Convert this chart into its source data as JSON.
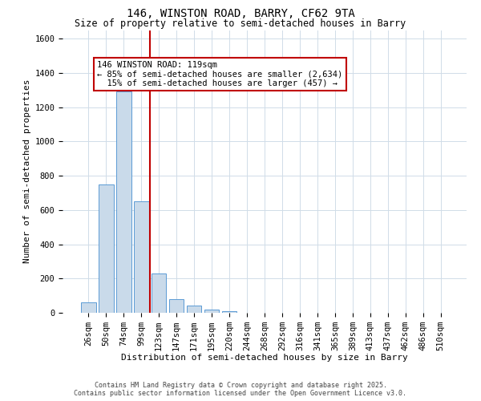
{
  "title": "146, WINSTON ROAD, BARRY, CF62 9TA",
  "subtitle": "Size of property relative to semi-detached houses in Barry",
  "xlabel": "Distribution of semi-detached houses by size in Barry",
  "ylabel": "Number of semi-detached properties",
  "bar_labels": [
    "26sqm",
    "50sqm",
    "74sqm",
    "99sqm",
    "123sqm",
    "147sqm",
    "171sqm",
    "195sqm",
    "220sqm",
    "244sqm",
    "268sqm",
    "292sqm",
    "316sqm",
    "341sqm",
    "365sqm",
    "389sqm",
    "413sqm",
    "437sqm",
    "462sqm",
    "486sqm",
    "510sqm"
  ],
  "bar_values": [
    62,
    750,
    1290,
    650,
    230,
    80,
    42,
    20,
    10,
    0,
    0,
    0,
    0,
    0,
    0,
    0,
    0,
    0,
    0,
    0,
    0
  ],
  "bar_color": "#c9daea",
  "bar_edge_color": "#5b9bd5",
  "vline_x_index": 4,
  "vline_color": "#c00000",
  "annotation_text": "146 WINSTON ROAD: 119sqm\n← 85% of semi-detached houses are smaller (2,634)\n  15% of semi-detached houses are larger (457) →",
  "annotation_box_color": "#c00000",
  "annotation_text_color": "#000000",
  "ylim": [
    0,
    1650
  ],
  "yticks": [
    0,
    200,
    400,
    600,
    800,
    1000,
    1200,
    1400,
    1600
  ],
  "footer_line1": "Contains HM Land Registry data © Crown copyright and database right 2025.",
  "footer_line2": "Contains public sector information licensed under the Open Government Licence v3.0.",
  "background_color": "#ffffff",
  "grid_color": "#d0dce8",
  "title_fontsize": 10,
  "subtitle_fontsize": 8.5,
  "axis_label_fontsize": 8,
  "tick_fontsize": 7.5,
  "annotation_fontsize": 7.5,
  "footer_fontsize": 6
}
